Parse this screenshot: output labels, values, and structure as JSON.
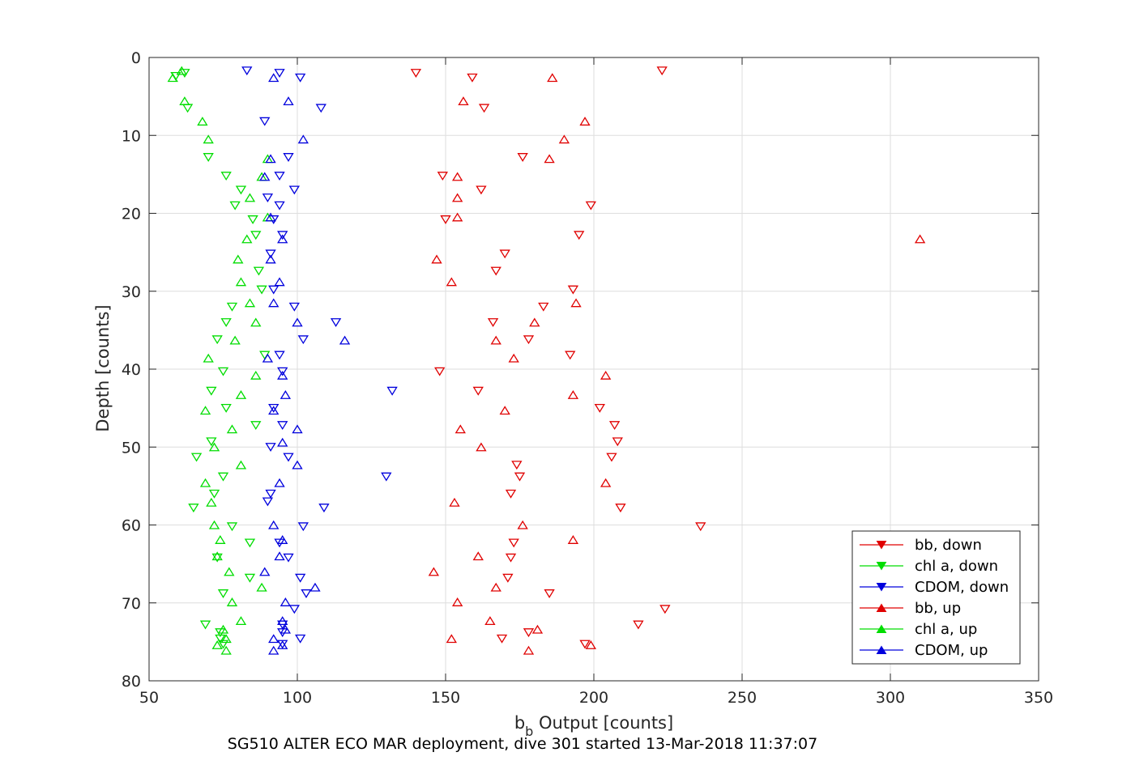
{
  "chart_data": {
    "type": "scatter",
    "xlabel_main": "b",
    "xlabel_sub": "b",
    "xlabel_rest": " Output [counts]",
    "ylabel": "Depth [counts]",
    "caption": "SG510 ALTER ECO MAR deployment, dive 301 started 13-Mar-2018 11:37:07",
    "xlim": [
      50,
      350
    ],
    "ylim": [
      0,
      80
    ],
    "y_reversed": true,
    "grid": true,
    "legend_position": "bottom-right",
    "x_ticks": [
      "50",
      "100",
      "150",
      "200",
      "250",
      "300",
      "350"
    ],
    "y_ticks": [
      "0",
      "10",
      "20",
      "30",
      "40",
      "50",
      "60",
      "70",
      "80"
    ],
    "series": [
      {
        "name": "bb, down",
        "color": "#e00000",
        "marker": "triangle-down",
        "points": [
          [
            140,
            2
          ],
          [
            159,
            2.6
          ],
          [
            223,
            1.7
          ],
          [
            163,
            6.5
          ],
          [
            176,
            12.8
          ],
          [
            149,
            15.2
          ],
          [
            162,
            17
          ],
          [
            199,
            19
          ],
          [
            150,
            20.8
          ],
          [
            195,
            22.8
          ],
          [
            170,
            25.2
          ],
          [
            167,
            27.4
          ],
          [
            193,
            29.8
          ],
          [
            183,
            32
          ],
          [
            166,
            34
          ],
          [
            178,
            36.2
          ],
          [
            192,
            38.2
          ],
          [
            148,
            40.3
          ],
          [
            161,
            42.8
          ],
          [
            202,
            45
          ],
          [
            207,
            47.2
          ],
          [
            208,
            49.3
          ],
          [
            206,
            51.3
          ],
          [
            174,
            52.3
          ],
          [
            175,
            53.8
          ],
          [
            172,
            56
          ],
          [
            209,
            57.8
          ],
          [
            236,
            60.2
          ],
          [
            173,
            62.3
          ],
          [
            172,
            64.2
          ],
          [
            171,
            66.8
          ],
          [
            185,
            68.8
          ],
          [
            224,
            70.8
          ],
          [
            215,
            72.8
          ],
          [
            178,
            73.8
          ],
          [
            169,
            74.6
          ],
          [
            197,
            75.3
          ]
        ]
      },
      {
        "name": "chl a, down",
        "color": "#00dd00",
        "marker": "triangle-down",
        "points": [
          [
            62,
            2
          ],
          [
            59,
            2.4
          ],
          [
            63,
            6.5
          ],
          [
            70,
            12.8
          ],
          [
            76,
            15.2
          ],
          [
            81,
            17
          ],
          [
            79,
            19
          ],
          [
            85,
            20.8
          ],
          [
            86,
            22.8
          ],
          [
            87,
            27.4
          ],
          [
            88,
            29.8
          ],
          [
            78,
            32
          ],
          [
            76,
            34
          ],
          [
            73,
            36.2
          ],
          [
            89,
            38.2
          ],
          [
            75,
            40.3
          ],
          [
            71,
            42.8
          ],
          [
            76,
            45
          ],
          [
            86,
            47.2
          ],
          [
            71,
            49.3
          ],
          [
            66,
            51.3
          ],
          [
            75,
            53.8
          ],
          [
            72,
            56
          ],
          [
            65,
            57.8
          ],
          [
            78,
            60.2
          ],
          [
            84,
            62.3
          ],
          [
            73,
            64.2
          ],
          [
            84,
            66.8
          ],
          [
            75,
            68.8
          ],
          [
            69,
            72.8
          ],
          [
            74,
            73.8
          ],
          [
            74,
            74.6
          ],
          [
            75,
            75.3
          ]
        ]
      },
      {
        "name": "CDOM, down",
        "color": "#0000dd",
        "marker": "triangle-down",
        "points": [
          [
            83,
            1.7
          ],
          [
            94,
            2
          ],
          [
            101,
            2.6
          ],
          [
            108,
            6.5
          ],
          [
            89,
            8.2
          ],
          [
            97,
            12.8
          ],
          [
            94,
            15.2
          ],
          [
            99,
            17
          ],
          [
            90,
            18
          ],
          [
            94,
            19
          ],
          [
            92,
            20.8
          ],
          [
            95,
            22.8
          ],
          [
            91,
            25.2
          ],
          [
            92,
            29.8
          ],
          [
            99,
            32
          ],
          [
            113,
            34
          ],
          [
            102,
            36.2
          ],
          [
            94,
            38.2
          ],
          [
            95,
            40.3
          ],
          [
            132,
            42.8
          ],
          [
            92,
            45
          ],
          [
            95,
            47.2
          ],
          [
            91,
            50
          ],
          [
            97,
            51.3
          ],
          [
            130,
            53.8
          ],
          [
            91,
            56
          ],
          [
            90,
            57
          ],
          [
            109,
            57.8
          ],
          [
            102,
            60.2
          ],
          [
            94,
            62.3
          ],
          [
            97,
            64.2
          ],
          [
            101,
            66.8
          ],
          [
            103,
            68.8
          ],
          [
            99,
            70.8
          ],
          [
            95,
            72.8
          ],
          [
            95,
            73.8
          ],
          [
            101,
            74.6
          ],
          [
            95,
            75.3
          ]
        ]
      },
      {
        "name": "bb, up",
        "color": "#e00000",
        "marker": "triangle-up",
        "points": [
          [
            186,
            2.6
          ],
          [
            156,
            5.6
          ],
          [
            197,
            8.2
          ],
          [
            190,
            10.5
          ],
          [
            185,
            13
          ],
          [
            154,
            15.3
          ],
          [
            154,
            18
          ],
          [
            154,
            20.5
          ],
          [
            310,
            23.3
          ],
          [
            147,
            25.9
          ],
          [
            152,
            28.8
          ],
          [
            194,
            31.5
          ],
          [
            180,
            34
          ],
          [
            167,
            36.3
          ],
          [
            173,
            38.6
          ],
          [
            204,
            40.8
          ],
          [
            193,
            43.3
          ],
          [
            170,
            45.3
          ],
          [
            155,
            47.7
          ],
          [
            162,
            50
          ],
          [
            204,
            54.6
          ],
          [
            153,
            57.1
          ],
          [
            176,
            60
          ],
          [
            193,
            61.9
          ],
          [
            161,
            64
          ],
          [
            146,
            66
          ],
          [
            167,
            68
          ],
          [
            154,
            69.9
          ],
          [
            165,
            72.3
          ],
          [
            181,
            73.4
          ],
          [
            152,
            74.6
          ],
          [
            199,
            75.4
          ],
          [
            178,
            76.1
          ]
        ]
      },
      {
        "name": "chl a, up",
        "color": "#00dd00",
        "marker": "triangle-up",
        "points": [
          [
            61,
            1.7
          ],
          [
            58,
            2.6
          ],
          [
            62,
            5.6
          ],
          [
            68,
            8.2
          ],
          [
            70,
            10.5
          ],
          [
            90,
            13
          ],
          [
            88,
            15.3
          ],
          [
            84,
            18
          ],
          [
            90,
            20.5
          ],
          [
            83,
            23.3
          ],
          [
            80,
            25.9
          ],
          [
            81,
            28.8
          ],
          [
            84,
            31.5
          ],
          [
            86,
            34
          ],
          [
            79,
            36.3
          ],
          [
            70,
            38.6
          ],
          [
            86,
            40.8
          ],
          [
            81,
            43.3
          ],
          [
            69,
            45.3
          ],
          [
            78,
            47.7
          ],
          [
            72,
            50
          ],
          [
            81,
            52.3
          ],
          [
            69,
            54.6
          ],
          [
            71,
            57.1
          ],
          [
            72,
            60
          ],
          [
            74,
            61.9
          ],
          [
            73,
            64
          ],
          [
            77,
            66
          ],
          [
            88,
            68
          ],
          [
            78,
            69.9
          ],
          [
            81,
            72.3
          ],
          [
            75,
            73.4
          ],
          [
            76,
            74.6
          ],
          [
            73,
            75.4
          ],
          [
            76,
            76.1
          ]
        ]
      },
      {
        "name": "CDOM, up",
        "color": "#0000dd",
        "marker": "triangle-up",
        "points": [
          [
            92,
            2.6
          ],
          [
            97,
            5.6
          ],
          [
            102,
            10.5
          ],
          [
            91,
            13
          ],
          [
            89,
            15.3
          ],
          [
            91,
            20.5
          ],
          [
            95,
            23.3
          ],
          [
            91,
            25.9
          ],
          [
            94,
            28.8
          ],
          [
            92,
            31.5
          ],
          [
            100,
            34
          ],
          [
            116,
            36.3
          ],
          [
            90,
            38.6
          ],
          [
            95,
            40.8
          ],
          [
            96,
            43.3
          ],
          [
            92,
            45.3
          ],
          [
            100,
            47.7
          ],
          [
            95,
            49.4
          ],
          [
            100,
            52.3
          ],
          [
            94,
            54.6
          ],
          [
            92,
            60
          ],
          [
            95,
            61.9
          ],
          [
            94,
            64
          ],
          [
            89,
            66
          ],
          [
            106,
            68
          ],
          [
            96,
            69.9
          ],
          [
            95,
            72.3
          ],
          [
            96,
            73.4
          ],
          [
            92,
            74.6
          ],
          [
            95,
            75.4
          ],
          [
            92,
            76.1
          ]
        ]
      }
    ]
  }
}
